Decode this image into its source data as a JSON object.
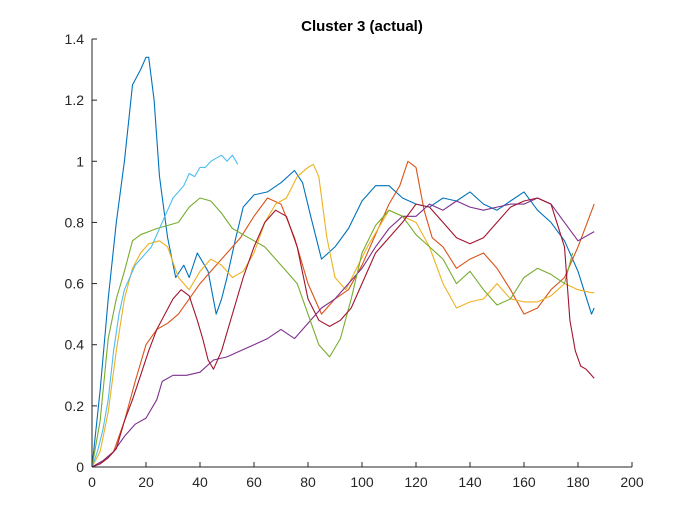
{
  "chart_data": {
    "type": "line",
    "title": "Cluster 3 (actual)",
    "xlabel": "",
    "ylabel": "",
    "xlim": [
      0,
      200
    ],
    "ylim": [
      0,
      1.4
    ],
    "xticks": [
      "0",
      "20",
      "40",
      "60",
      "80",
      "100",
      "120",
      "140",
      "160",
      "180",
      "200"
    ],
    "yticks": [
      "0",
      "0.2",
      "0.4",
      "0.6",
      "0.8",
      "1",
      "1.2",
      "1.4"
    ],
    "grid": false,
    "legend": "none",
    "series": [
      {
        "color": "#0072BD",
        "x": [
          0,
          3,
          6,
          9,
          12,
          15,
          18,
          20,
          21,
          23,
          25,
          28,
          31,
          34,
          36,
          39,
          43,
          46,
          48,
          50,
          53,
          56,
          60,
          65,
          70,
          75,
          78,
          81,
          85,
          90,
          95,
          100,
          105,
          110,
          115,
          120,
          125,
          130,
          135,
          140,
          145,
          150,
          155,
          160,
          165,
          170,
          175,
          180,
          185,
          186
        ],
        "y": [
          0,
          0.25,
          0.55,
          0.8,
          1.0,
          1.25,
          1.3,
          1.34,
          1.34,
          1.2,
          0.95,
          0.75,
          0.62,
          0.66,
          0.62,
          0.7,
          0.64,
          0.5,
          0.55,
          0.62,
          0.74,
          0.85,
          0.89,
          0.9,
          0.93,
          0.97,
          0.93,
          0.82,
          0.68,
          0.72,
          0.78,
          0.87,
          0.92,
          0.92,
          0.88,
          0.86,
          0.85,
          0.88,
          0.87,
          0.9,
          0.86,
          0.84,
          0.87,
          0.9,
          0.84,
          0.8,
          0.74,
          0.64,
          0.5,
          0.52
        ]
      },
      {
        "color": "#D95319",
        "x": [
          0,
          4,
          8,
          12,
          16,
          20,
          24,
          28,
          32,
          36,
          40,
          45,
          50,
          55,
          60,
          65,
          70,
          75,
          80,
          85,
          90,
          95,
          100,
          105,
          110,
          114,
          117,
          120,
          123,
          126,
          130,
          135,
          140,
          145,
          150,
          155,
          160,
          165,
          170,
          175,
          180,
          186
        ],
        "y": [
          0,
          0.02,
          0.05,
          0.15,
          0.28,
          0.4,
          0.45,
          0.47,
          0.5,
          0.55,
          0.6,
          0.65,
          0.7,
          0.75,
          0.82,
          0.88,
          0.86,
          0.75,
          0.6,
          0.5,
          0.55,
          0.58,
          0.66,
          0.76,
          0.86,
          0.92,
          1.0,
          0.98,
          0.84,
          0.75,
          0.72,
          0.65,
          0.68,
          0.7,
          0.65,
          0.58,
          0.5,
          0.52,
          0.58,
          0.62,
          0.72,
          0.86
        ]
      },
      {
        "color": "#EDB120",
        "x": [
          0,
          3,
          6,
          9,
          12,
          15,
          18,
          21,
          25,
          28,
          32,
          36,
          40,
          44,
          48,
          52,
          56,
          60,
          64,
          68,
          72,
          76,
          80,
          82,
          84,
          87,
          90,
          94,
          98,
          102,
          106,
          110,
          115,
          120,
          125,
          130,
          135,
          140,
          145,
          150,
          155,
          160,
          165,
          170,
          175,
          180,
          185,
          186
        ],
        "y": [
          0,
          0.05,
          0.18,
          0.38,
          0.55,
          0.65,
          0.7,
          0.73,
          0.74,
          0.72,
          0.62,
          0.58,
          0.64,
          0.68,
          0.66,
          0.62,
          0.64,
          0.7,
          0.8,
          0.86,
          0.88,
          0.95,
          0.98,
          0.99,
          0.95,
          0.75,
          0.62,
          0.58,
          0.65,
          0.72,
          0.78,
          0.84,
          0.82,
          0.8,
          0.72,
          0.6,
          0.52,
          0.54,
          0.55,
          0.6,
          0.55,
          0.54,
          0.54,
          0.56,
          0.6,
          0.58,
          0.57,
          0.57
        ]
      },
      {
        "color": "#7E2F8E",
        "x": [
          0,
          4,
          8,
          12,
          16,
          20,
          24,
          26,
          30,
          35,
          40,
          45,
          50,
          55,
          60,
          65,
          70,
          75,
          80,
          85,
          90,
          95,
          100,
          105,
          110,
          115,
          120,
          125,
          130,
          135,
          140,
          145,
          150,
          155,
          160,
          165,
          170,
          175,
          180,
          186
        ],
        "y": [
          0,
          0.02,
          0.05,
          0.1,
          0.14,
          0.16,
          0.22,
          0.28,
          0.3,
          0.3,
          0.31,
          0.35,
          0.36,
          0.38,
          0.4,
          0.42,
          0.45,
          0.42,
          0.47,
          0.52,
          0.55,
          0.6,
          0.65,
          0.72,
          0.78,
          0.82,
          0.82,
          0.86,
          0.84,
          0.87,
          0.85,
          0.84,
          0.85,
          0.86,
          0.86,
          0.88,
          0.86,
          0.8,
          0.74,
          0.77
        ]
      },
      {
        "color": "#77AC30",
        "x": [
          0,
          3,
          6,
          9,
          12,
          15,
          18,
          21,
          24,
          28,
          32,
          36,
          40,
          44,
          48,
          52,
          56,
          60,
          64,
          68,
          72,
          76,
          80,
          84,
          88,
          92,
          96,
          100,
          105,
          110,
          115,
          120,
          125,
          130,
          135,
          140,
          145,
          150,
          155,
          160,
          165,
          170,
          175,
          178
        ],
        "y": [
          0,
          0.15,
          0.42,
          0.55,
          0.64,
          0.74,
          0.76,
          0.77,
          0.78,
          0.79,
          0.8,
          0.85,
          0.88,
          0.87,
          0.83,
          0.78,
          0.76,
          0.74,
          0.72,
          0.68,
          0.64,
          0.6,
          0.5,
          0.4,
          0.36,
          0.42,
          0.55,
          0.7,
          0.79,
          0.84,
          0.82,
          0.76,
          0.72,
          0.68,
          0.6,
          0.64,
          0.58,
          0.53,
          0.55,
          0.62,
          0.65,
          0.63,
          0.6,
          0.7
        ]
      },
      {
        "color": "#4DBEEE",
        "x": [
          0,
          2,
          4,
          6,
          8,
          10,
          12,
          14,
          16,
          18,
          20,
          22,
          24,
          26,
          28,
          30,
          32,
          34,
          36,
          38,
          40,
          42,
          44,
          46,
          48,
          50,
          52,
          54
        ],
        "y": [
          0,
          0.05,
          0.12,
          0.22,
          0.38,
          0.5,
          0.58,
          0.62,
          0.66,
          0.68,
          0.7,
          0.72,
          0.76,
          0.8,
          0.84,
          0.88,
          0.9,
          0.92,
          0.96,
          0.95,
          0.98,
          0.98,
          1.0,
          1.01,
          1.02,
          1.0,
          1.02,
          0.99
        ]
      },
      {
        "color": "#A2142F",
        "x": [
          0,
          3,
          6,
          9,
          12,
          15,
          18,
          21,
          24,
          27,
          30,
          33,
          36,
          39,
          41,
          43,
          45,
          48,
          52,
          56,
          60,
          64,
          68,
          72,
          76,
          80,
          84,
          88,
          92,
          96,
          100,
          105,
          110,
          115,
          120,
          125,
          130,
          135,
          140,
          145,
          150,
          155,
          160,
          165,
          170,
          175,
          177,
          179,
          181,
          183,
          186
        ],
        "y": [
          0,
          0.01,
          0.03,
          0.06,
          0.15,
          0.22,
          0.3,
          0.38,
          0.45,
          0.5,
          0.55,
          0.58,
          0.56,
          0.48,
          0.42,
          0.35,
          0.32,
          0.38,
          0.5,
          0.62,
          0.72,
          0.8,
          0.84,
          0.82,
          0.72,
          0.55,
          0.48,
          0.46,
          0.48,
          0.52,
          0.6,
          0.7,
          0.75,
          0.8,
          0.86,
          0.85,
          0.8,
          0.75,
          0.73,
          0.75,
          0.8,
          0.85,
          0.87,
          0.88,
          0.86,
          0.72,
          0.48,
          0.38,
          0.33,
          0.32,
          0.29
        ]
      }
    ]
  }
}
